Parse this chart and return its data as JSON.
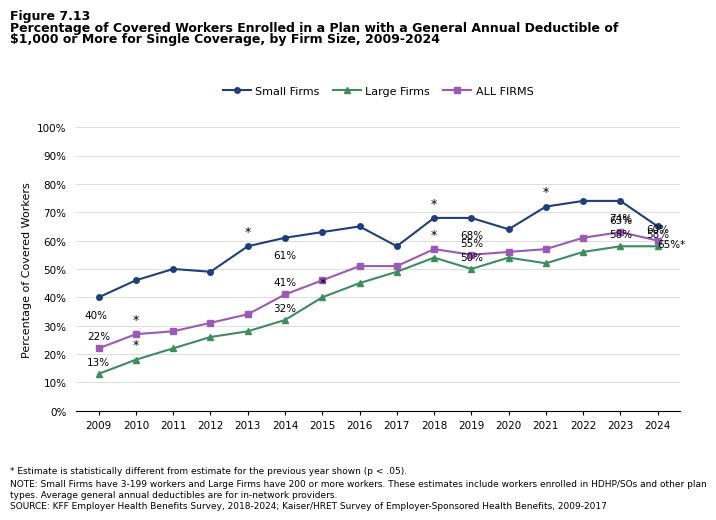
{
  "years": [
    2009,
    2010,
    2011,
    2012,
    2013,
    2014,
    2015,
    2016,
    2017,
    2018,
    2019,
    2020,
    2021,
    2022,
    2023,
    2024
  ],
  "small_firms": [
    40,
    46,
    50,
    49,
    58,
    61,
    63,
    65,
    58,
    68,
    68,
    64,
    72,
    74,
    74,
    65
  ],
  "large_firms": [
    13,
    18,
    22,
    26,
    28,
    32,
    40,
    45,
    49,
    54,
    50,
    54,
    52,
    56,
    58,
    58
  ],
  "all_firms": [
    22,
    27,
    28,
    31,
    34,
    41,
    46,
    51,
    51,
    57,
    55,
    56,
    57,
    61,
    63,
    60
  ],
  "small_color": "#1f3f7a",
  "large_color": "#3d8c5f",
  "all_color": "#9b59b6",
  "small_label": "Small Firms",
  "large_label": "Large Firms",
  "all_label": "ALL FIRMS",
  "title_line1": "Figure 7.13",
  "title_line2": "Percentage of Covered Workers Enrolled in a Plan with a General Annual Deductible of",
  "title_line3": "$1,000 or More for Single Coverage, by Firm Size, 2009-2024",
  "ylabel": "Percentage of Covered Workers",
  "footnote1": "* Estimate is statistically different from estimate for the previous year shown (p < .05).",
  "footnote2": "NOTE: Small Firms have 3-199 workers and Large Firms have 200 or more workers. These estimates include workers enrolled in HDHP/SOs and other plan",
  "footnote3": "types. Average general annual deductibles are for in-network providers.",
  "footnote4": "SOURCE: KFF Employer Health Benefits Survey, 2018-2024; Kaiser/HRET Survey of Employer-Sponsored Health Benefits, 2009-2017",
  "ylim": [
    0,
    100
  ],
  "yticks": [
    0,
    10,
    20,
    30,
    40,
    50,
    60,
    70,
    80,
    90,
    100
  ],
  "background_color": "#ffffff"
}
